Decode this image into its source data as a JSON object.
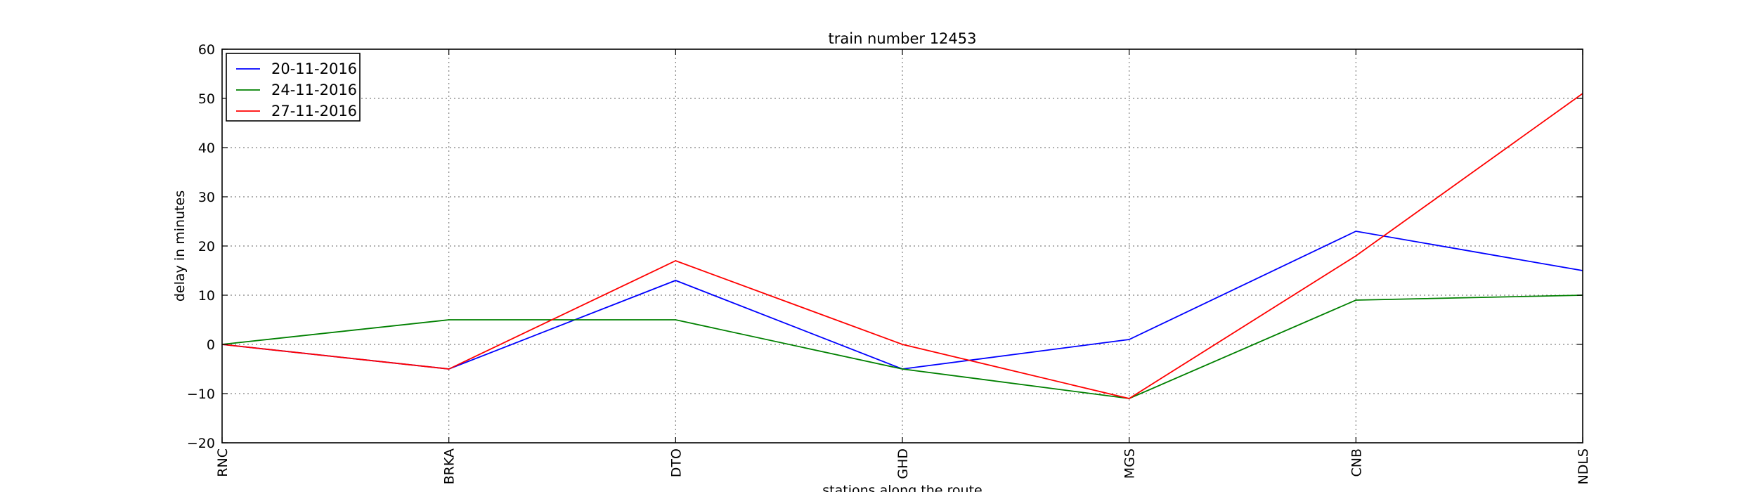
{
  "chart_data": {
    "type": "line",
    "title": "train number 12453",
    "xlabel": "stations along the route",
    "ylabel": "delay in minutes",
    "categories": [
      "RNC",
      "BRKA",
      "DTO",
      "GHD",
      "MGS",
      "CNB",
      "NDLS"
    ],
    "ylim": [
      -20,
      60
    ],
    "yticks": [
      -20,
      -10,
      0,
      10,
      20,
      30,
      40,
      50,
      60
    ],
    "ytick_labels": [
      "−20",
      "−10",
      "0",
      "10",
      "20",
      "30",
      "40",
      "50",
      "60"
    ],
    "grid": true,
    "legend_position": "top-left",
    "series": [
      {
        "name": "20-11-2016",
        "color": "#0000ff",
        "values": [
          0,
          -5,
          13,
          -5,
          1,
          23,
          15
        ]
      },
      {
        "name": "24-11-2016",
        "color": "#008000",
        "values": [
          0,
          5,
          5,
          -5,
          -11,
          9,
          10
        ]
      },
      {
        "name": "27-11-2016",
        "color": "#ff0000",
        "values": [
          0,
          -5,
          17,
          0,
          -11,
          18,
          51
        ]
      }
    ]
  }
}
